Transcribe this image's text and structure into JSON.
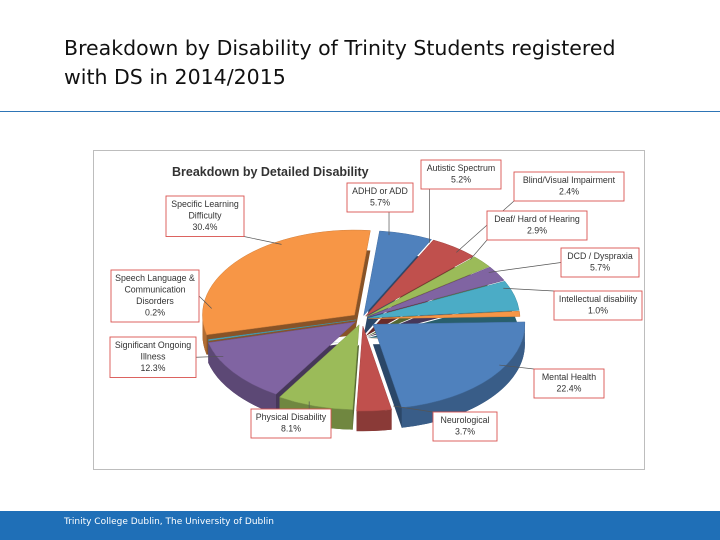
{
  "slide": {
    "title_line1": "Breakdown by Disability of Trinity Students registered",
    "title_line2": "with DS in 2014/2015",
    "footer": "Trinity College Dublin, The University of Dublin",
    "accent_color": "#1f6fb7"
  },
  "chart_data": {
    "type": "pie",
    "title": "Breakdown by Detailed Disability",
    "legend": "none",
    "label_box_border": "#d9534f",
    "slices": [
      {
        "label": "ADHD or ADD",
        "value": 5.7,
        "display": "5.7%",
        "color": "#4f81bd"
      },
      {
        "label": "Autistic Spectrum",
        "value": 5.2,
        "display": "5.2%",
        "color": "#c0504d"
      },
      {
        "label": "Blind/Visual Impairment",
        "value": 2.4,
        "display": "2.4%",
        "color": "#9bbb59"
      },
      {
        "label": "Deaf/ Hard of Hearing",
        "value": 2.9,
        "display": "2.9%",
        "color": "#8064a2"
      },
      {
        "label": "DCD / Dyspraxia",
        "value": 5.7,
        "display": "5.7%",
        "color": "#4bacc6"
      },
      {
        "label": "Intellectual disability",
        "value": 1.0,
        "display": "1.0%",
        "color": "#f79646"
      },
      {
        "label": "Mental Health",
        "value": 22.4,
        "display": "22.4%",
        "color": "#4f81bd"
      },
      {
        "label": "Neurological",
        "value": 3.7,
        "display": "3.7%",
        "color": "#c0504d"
      },
      {
        "label": "Physical Disability",
        "value": 8.1,
        "display": "8.1%",
        "color": "#9bbb59"
      },
      {
        "label": "Significant Ongoing Illness",
        "value": 12.3,
        "display": "12.3%",
        "color": "#8064a2"
      },
      {
        "label": "Speech Language & Communication Disorders",
        "value": 0.2,
        "display": "0.2%",
        "color": "#4bacc6"
      },
      {
        "label": "Specific Learning Difficulty",
        "value": 30.4,
        "display": "30.4%",
        "color": "#f79646"
      }
    ]
  }
}
